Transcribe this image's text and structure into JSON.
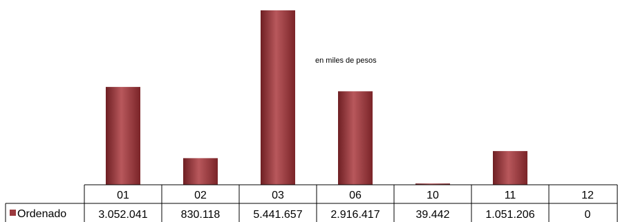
{
  "chart_data": {
    "type": "bar",
    "categories": [
      "01",
      "02",
      "03",
      "06",
      "10",
      "11",
      "12"
    ],
    "series": [
      {
        "name": "Ordenado",
        "values": [
          3052041,
          830118,
          5441657,
          2916417,
          39442,
          1051206,
          0
        ],
        "value_labels": [
          "3.052.041",
          "830.118",
          "5.441.657",
          "2.916.417",
          "39.442",
          "1.051.206",
          "0"
        ]
      }
    ],
    "annotation": "en miles de pesos",
    "ylim": [
      0,
      5441657
    ],
    "grid": false,
    "legend": "data-table-left",
    "colors": {
      "bar": "#9b3a3e",
      "bar_dark": "#6e1f23",
      "bar_light": "#b8585c",
      "legend_key": "#9b3a3e"
    }
  }
}
